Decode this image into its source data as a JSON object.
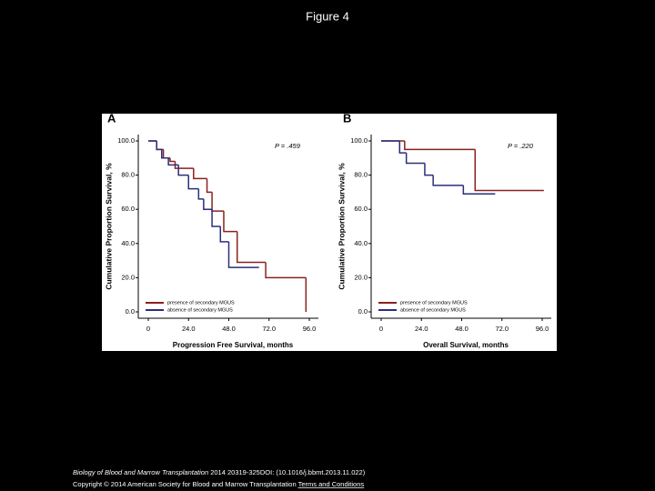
{
  "slide": {
    "title": "Figure 4",
    "journal": "Biology of Blood and Marrow Transplantation",
    "citation": "2014 20319-325DOI: (10.1016/j.bbmt.2013.11.022)",
    "copyright": "Copyright © 2014 American Society for Blood and Marrow Transplantation",
    "link": "Terms and Conditions"
  },
  "chart_data": [
    {
      "type": "line",
      "panel": "A",
      "annotation": "P = .459",
      "ylabel": "Cumulative Proportion Survival, %",
      "xlabel": "Progression Free Survival, months",
      "xlim": [
        0,
        96
      ],
      "ylim": [
        0,
        100
      ],
      "xticks": [
        0,
        {
          "value": 24,
          "label": "24.0"
        },
        {
          "value": 48,
          "label": "48.0"
        },
        {
          "value": 72,
          "label": "72.0"
        },
        {
          "value": 96,
          "label": "96.0"
        }
      ],
      "yticks": [
        {
          "value": 0,
          "label": "0.0"
        },
        {
          "value": 20,
          "label": "20.0"
        },
        {
          "value": 40,
          "label": "40.0"
        },
        {
          "value": 60,
          "label": "60.0"
        },
        {
          "value": 80,
          "label": "80.0"
        },
        {
          "value": 100,
          "label": "100.0"
        }
      ],
      "series": [
        {
          "name": "presence of secondary MGUS",
          "color": "#8b2020",
          "x": [
            0,
            5,
            9,
            13,
            16,
            27,
            35,
            38,
            45,
            53,
            70,
            94,
            94
          ],
          "values": [
            100,
            95,
            90,
            88,
            84,
            78,
            70,
            59,
            47,
            29,
            20,
            0,
            0
          ]
        },
        {
          "name": "absence of secondary MGUS",
          "color": "#2a2f7a",
          "x": [
            0,
            5,
            8,
            12,
            18,
            24,
            30,
            33,
            38,
            43,
            48,
            66
          ],
          "values": [
            100,
            95,
            90,
            86,
            80,
            72,
            66,
            60,
            50,
            41,
            26,
            26
          ]
        }
      ]
    },
    {
      "type": "line",
      "panel": "B",
      "annotation": "P = .220",
      "ylabel": "Cumulative Proportion Survival, %",
      "xlabel": "Overall Survival, months",
      "xlim": [
        0,
        96
      ],
      "ylim": [
        0,
        100
      ],
      "xticks": [
        0,
        {
          "value": 24,
          "label": "24.0"
        },
        {
          "value": 48,
          "label": "48.0"
        },
        {
          "value": 72,
          "label": "72.0"
        },
        {
          "value": 96,
          "label": "96.0"
        }
      ],
      "yticks": [
        {
          "value": 0,
          "label": "0.0"
        },
        {
          "value": 20,
          "label": "20.0"
        },
        {
          "value": 40,
          "label": "40.0"
        },
        {
          "value": 60,
          "label": "60.0"
        },
        {
          "value": 80,
          "label": "80.0"
        },
        {
          "value": 100,
          "label": "100.0"
        }
      ],
      "series": [
        {
          "name": "presence of secondary MGUS",
          "color": "#8b2020",
          "x": [
            0,
            14,
            56,
            97
          ],
          "values": [
            100,
            95,
            71,
            71
          ]
        },
        {
          "name": "absence of secondary MGUS",
          "color": "#2a2f7a",
          "x": [
            0,
            11,
            15,
            26,
            31,
            49,
            68
          ],
          "values": [
            100,
            93,
            87,
            80,
            74,
            69,
            69
          ]
        }
      ]
    }
  ]
}
